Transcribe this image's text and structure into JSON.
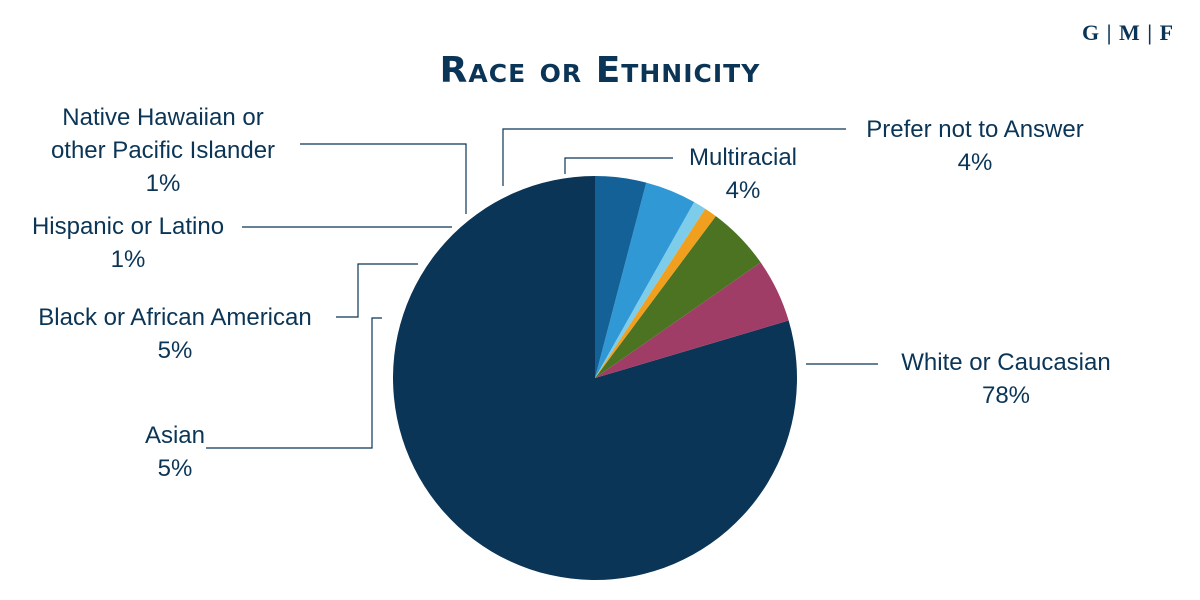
{
  "logo": "G | M | F",
  "chart_data": {
    "type": "pie",
    "title": "Race or Ethnicity",
    "start_angle_deg": 0,
    "direction": "clockwise",
    "slices": [
      {
        "label": "White or Caucasian",
        "lines": [
          "White or Caucasian"
        ],
        "value": 78,
        "value_label": "78%",
        "color": "#0b3556"
      },
      {
        "label": "Asian",
        "lines": [
          "Asian"
        ],
        "value": 5,
        "value_label": "5%",
        "color": "#a03d67"
      },
      {
        "label": "Black or African American",
        "lines": [
          "Black or African American"
        ],
        "value": 5,
        "value_label": "5%",
        "color": "#4b7322"
      },
      {
        "label": "Hispanic or Latino",
        "lines": [
          "Hispanic or Latino"
        ],
        "value": 1,
        "value_label": "1%",
        "color": "#f0a01e"
      },
      {
        "label": "Native Hawaiian or other Pacific Islander",
        "lines": [
          "Native Hawaiian or",
          "other Pacific Islander"
        ],
        "value": 1,
        "value_label": "1%",
        "color": "#7cccea"
      },
      {
        "label": "Prefer not to Answer",
        "lines": [
          "Prefer not to Answer"
        ],
        "value": 4,
        "value_label": "4%",
        "color": "#2f98d5"
      },
      {
        "label": "Multiracial",
        "lines": [
          "Multiracial"
        ],
        "value": 4,
        "value_label": "4%",
        "color": "#136197"
      }
    ]
  }
}
